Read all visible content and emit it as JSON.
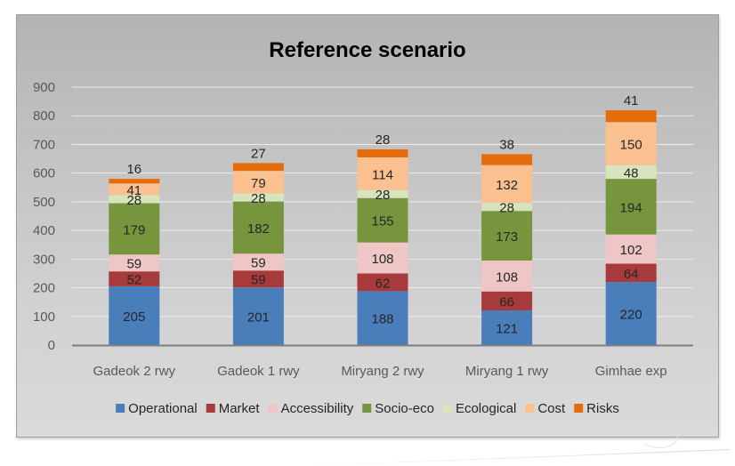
{
  "chart_data": {
    "type": "bar",
    "stacked": true,
    "title": "Reference scenario",
    "xlabel": "",
    "ylabel": "",
    "ylim": [
      0,
      900
    ],
    "yticks": [
      0,
      100,
      200,
      300,
      400,
      500,
      600,
      700,
      800,
      900
    ],
    "grid": true,
    "legend_position": "bottom",
    "categories": [
      "Gadeok 2 rwy",
      "Gadeok 1 rwy",
      "Miryang 2 rwy",
      "Miryang 1 rwy",
      "Gimhae exp"
    ],
    "series": [
      {
        "name": "Operational",
        "color": "#4a7ebb",
        "values": [
          205,
          201,
          188,
          121,
          220
        ]
      },
      {
        "name": "Market",
        "color": "#a73b3b",
        "values": [
          52,
          59,
          62,
          66,
          64
        ]
      },
      {
        "name": "Accessibility",
        "color": "#efc6c6",
        "values": [
          59,
          59,
          108,
          108,
          102
        ]
      },
      {
        "name": "Socio-eco",
        "color": "#77953d",
        "values": [
          179,
          182,
          155,
          173,
          194
        ]
      },
      {
        "name": "Ecological",
        "color": "#d7e4bd",
        "values": [
          28,
          28,
          28,
          28,
          48
        ]
      },
      {
        "name": "Cost",
        "color": "#fac090",
        "values": [
          41,
          79,
          114,
          132,
          150
        ]
      },
      {
        "name": "Risks",
        "color": "#e46c0a",
        "values": [
          16,
          27,
          28,
          38,
          41
        ]
      }
    ]
  }
}
